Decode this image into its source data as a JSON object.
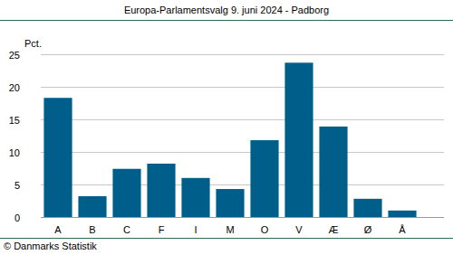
{
  "chart_data": {
    "type": "bar",
    "title": "Europa-Parlamentsvalg 9. juni 2024 - Padborg",
    "y_label": "Pct.",
    "source": "© Danmarks Statistik",
    "categories": [
      "A",
      "B",
      "C",
      "F",
      "I",
      "M",
      "O",
      "V",
      "Æ",
      "Ø",
      "Å"
    ],
    "values": [
      18.3,
      3.2,
      7.4,
      8.2,
      6.0,
      4.3,
      11.8,
      23.7,
      13.9,
      2.8,
      1.0
    ],
    "color": "#005f8a",
    "ylim": [
      0,
      25
    ],
    "yticks": [
      0,
      5,
      10,
      15,
      20,
      25
    ],
    "grid": true
  }
}
